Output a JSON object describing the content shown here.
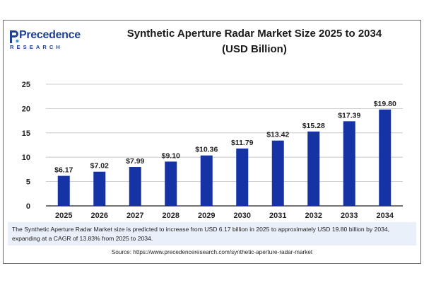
{
  "brand": {
    "name": "Precedence",
    "tagline": "RESEARCH"
  },
  "title_line1": "Synthetic Aperture Radar Market Size 2025 to 2034",
  "title_line2": "(USD Billion)",
  "colors": {
    "bar": "#1633a6",
    "brand": "#1f3f8f",
    "grid": "#bfbfbf",
    "axis": "#222222"
  },
  "chart_data": {
    "type": "bar",
    "categories": [
      "2025",
      "2026",
      "2027",
      "2028",
      "2029",
      "2030",
      "2031",
      "2032",
      "2033",
      "2034"
    ],
    "values": [
      6.17,
      7.02,
      7.99,
      9.1,
      10.36,
      11.79,
      13.42,
      15.28,
      17.39,
      19.8
    ],
    "data_labels": [
      "$6.17",
      "$7.02",
      "$7.99",
      "$9.10",
      "$10.36",
      "$11.79",
      "$13.42",
      "$15.28",
      "$17.39",
      "$19.80"
    ],
    "title": "Synthetic Aperture Radar Market Size 2025 to 2034 (USD Billion)",
    "xlabel": "",
    "ylabel": "",
    "ylim": [
      0,
      25
    ],
    "yticks": [
      "0",
      "5",
      "10",
      "15",
      "20",
      "25"
    ],
    "grid": true,
    "legend": "none"
  },
  "description": "The Synthetic Aperture Radar Market size is predicted to increase from USD 6.17 billion in 2025 to approximately USD 19.80 billion by 2034, expanding at a CAGR of 13.83% from 2025 to 2034.",
  "source": "Source: https://www.precedenceresearch.com/synthetic-aperture-radar-market"
}
